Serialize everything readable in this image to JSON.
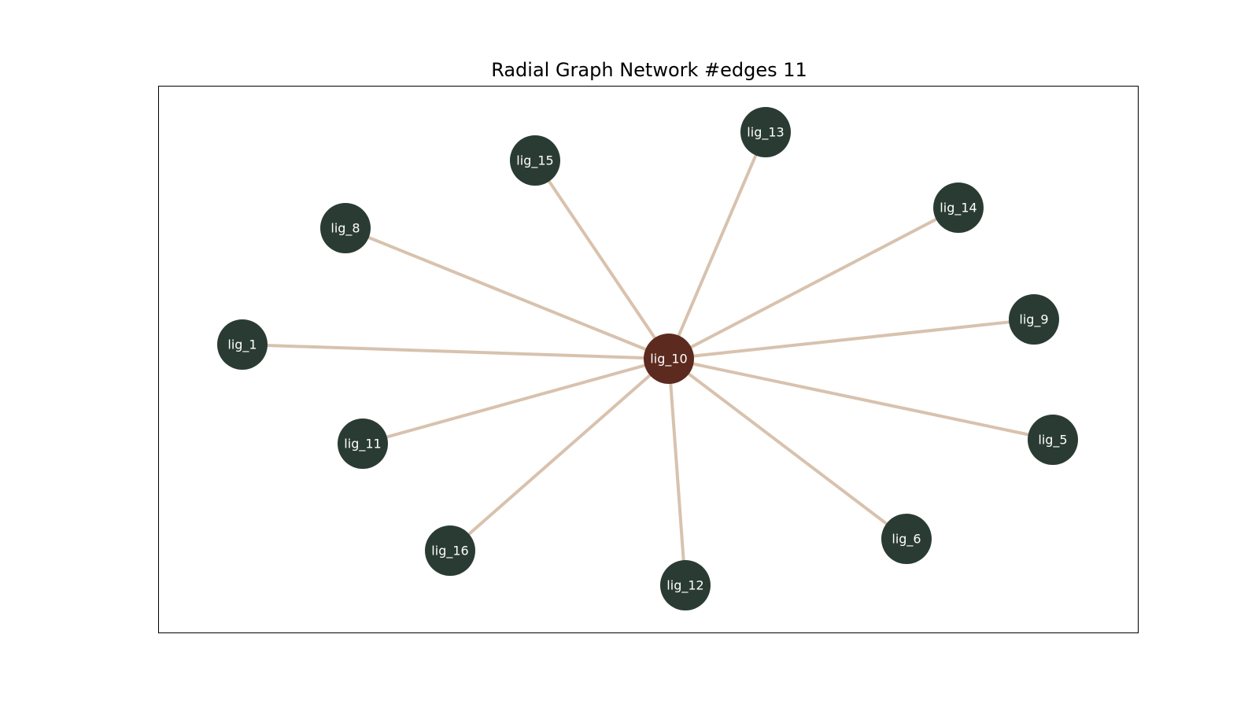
{
  "title": "Radial Graph Network #edges 11",
  "colors": {
    "hub_node": "#5c2a1f",
    "leaf_node": "#2a3b33",
    "edge": "#d8c2ae",
    "label": "#ffffff",
    "frame": "#000000"
  },
  "hub": "lig_10",
  "nodes": [
    {
      "id": "lig_10",
      "role": "hub"
    },
    {
      "id": "lig_13",
      "role": "leaf"
    },
    {
      "id": "lig_15",
      "role": "leaf"
    },
    {
      "id": "lig_14",
      "role": "leaf"
    },
    {
      "id": "lig_8",
      "role": "leaf"
    },
    {
      "id": "lig_9",
      "role": "leaf"
    },
    {
      "id": "lig_1",
      "role": "leaf"
    },
    {
      "id": "lig_5",
      "role": "leaf"
    },
    {
      "id": "lig_11",
      "role": "leaf"
    },
    {
      "id": "lig_6",
      "role": "leaf"
    },
    {
      "id": "lig_16",
      "role": "leaf"
    },
    {
      "id": "lig_12",
      "role": "leaf"
    }
  ],
  "edges": [
    {
      "source": "lig_10",
      "target": "lig_13"
    },
    {
      "source": "lig_10",
      "target": "lig_15"
    },
    {
      "source": "lig_10",
      "target": "lig_14"
    },
    {
      "source": "lig_10",
      "target": "lig_8"
    },
    {
      "source": "lig_10",
      "target": "lig_9"
    },
    {
      "source": "lig_10",
      "target": "lig_1"
    },
    {
      "source": "lig_10",
      "target": "lig_5"
    },
    {
      "source": "lig_10",
      "target": "lig_11"
    },
    {
      "source": "lig_10",
      "target": "lig_6"
    },
    {
      "source": "lig_10",
      "target": "lig_16"
    },
    {
      "source": "lig_10",
      "target": "lig_12"
    }
  ]
}
